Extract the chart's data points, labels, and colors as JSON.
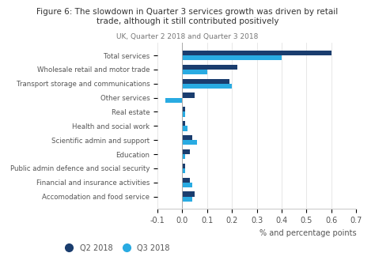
{
  "title": "Figure 6: The slowdown in Quarter 3 services growth was driven by retail\ntrade, although it still contributed positively",
  "subtitle": "UK, Quarter 2 2018 and Quarter 3 2018",
  "xlabel": "% and percentage points",
  "categories": [
    "Accomodation and food service",
    "Financial and insurance activities",
    "Public admin defence and social security",
    "Education",
    "Scientific admin and support",
    "Health and social work",
    "Real estate",
    "Other services",
    "Transport storage and communications",
    "Wholesale retail and motor trade",
    "Total services"
  ],
  "q2_values": [
    0.05,
    0.03,
    0.01,
    0.03,
    0.04,
    0.01,
    0.01,
    0.05,
    0.19,
    0.22,
    0.6
  ],
  "q3_values": [
    0.04,
    0.04,
    0.01,
    0.01,
    0.06,
    0.02,
    0.01,
    -0.07,
    0.2,
    0.1,
    0.4
  ],
  "q2_color": "#1a3d6e",
  "q3_color": "#29abe2",
  "xlim": [
    -0.1,
    0.7
  ],
  "xticks": [
    -0.1,
    0.0,
    0.1,
    0.2,
    0.3,
    0.4,
    0.5,
    0.6,
    0.7
  ],
  "bar_height": 0.35,
  "background_color": "#ffffff",
  "legend_q2": "Q2 2018",
  "legend_q3": "Q3 2018"
}
